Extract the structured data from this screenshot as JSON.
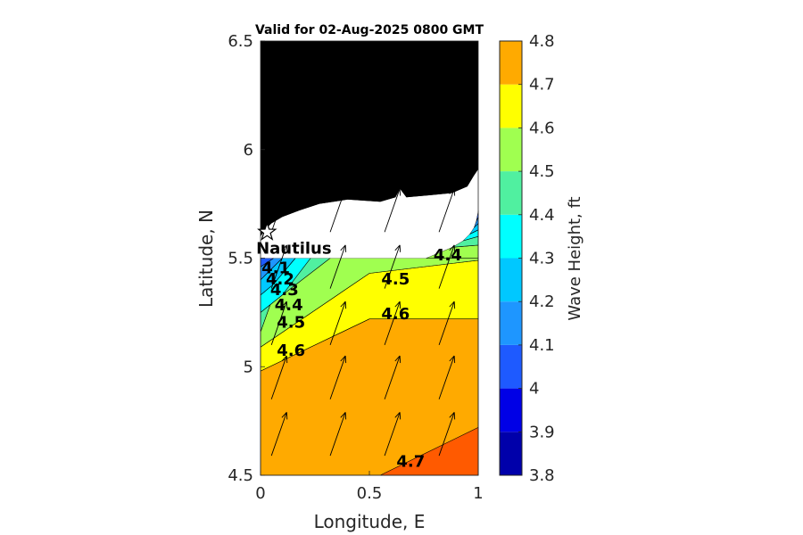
{
  "chart_data": {
    "type": "contour",
    "title": "Valid for 02-Aug-2025 0800 GMT",
    "xlabel": "Longitude, E",
    "ylabel": "Latitude, N",
    "xlim": [
      0,
      1
    ],
    "ylim": [
      4.5,
      6.5
    ],
    "xticks": [
      "0",
      "0.5",
      "1"
    ],
    "yticks": [
      "4.5",
      "5",
      "5.5",
      "6",
      "6.5"
    ],
    "colorbar": {
      "label": "Wave Height, ft",
      "ticks": [
        "3.8",
        "3.9",
        "4",
        "4.1",
        "4.2",
        "4.3",
        "4.4",
        "4.5",
        "4.6",
        "4.7",
        "4.8"
      ],
      "levels": [
        3.8,
        3.9,
        4.0,
        4.1,
        4.2,
        4.3,
        4.4,
        4.5,
        4.6,
        4.7,
        4.8
      ],
      "colors": [
        "#0000AA",
        "#0000E6",
        "#1E5AFF",
        "#1E96FF",
        "#00C8FF",
        "#00FFFF",
        "#50F0A0",
        "#A0FF50",
        "#FFFF00",
        "#FFAA00",
        "#FF5A00"
      ]
    },
    "site": {
      "name": "Nautilus",
      "lon": 0.03,
      "lat": 5.62
    },
    "contour_labels": [
      {
        "text": "4.1",
        "lon": 0.07,
        "lat": 5.45
      },
      {
        "text": "4.2",
        "lon": 0.09,
        "lat": 5.4
      },
      {
        "text": "4.3",
        "lon": 0.11,
        "lat": 5.35
      },
      {
        "text": "4.4",
        "lon": 0.13,
        "lat": 5.28
      },
      {
        "text": "4.5",
        "lon": 0.14,
        "lat": 5.2
      },
      {
        "text": "4.6",
        "lon": 0.14,
        "lat": 5.07
      },
      {
        "text": "4.5",
        "lon": 0.62,
        "lat": 5.4
      },
      {
        "text": "4.6",
        "lon": 0.62,
        "lat": 5.24
      },
      {
        "text": "4.4",
        "lon": 0.86,
        "lat": 5.51
      },
      {
        "text": "4.7",
        "lon": 0.69,
        "lat": 4.56
      }
    ],
    "regions": [
      {
        "level": 4.6,
        "color": "#FFAA00",
        "points": [
          [
            0,
            4.5
          ],
          [
            1,
            4.5
          ],
          [
            1,
            5.22
          ],
          [
            0.5,
            5.22
          ],
          [
            0,
            4.98
          ]
        ]
      },
      {
        "level": 4.7,
        "color": "#FF5A00",
        "points": [
          [
            0.55,
            4.5
          ],
          [
            1,
            4.5
          ],
          [
            1,
            4.72
          ]
        ]
      },
      {
        "level": 4.5,
        "color": "#FFFF00",
        "points": [
          [
            0,
            4.98
          ],
          [
            0.5,
            5.22
          ],
          [
            1,
            5.22
          ],
          [
            1,
            5.49
          ],
          [
            0.5,
            5.43
          ],
          [
            0,
            5.09
          ]
        ]
      },
      {
        "level": 4.4,
        "color": "#A0FF50",
        "points": [
          [
            0,
            5.09
          ],
          [
            0.5,
            5.43
          ],
          [
            1,
            5.49
          ],
          [
            1,
            5.5
          ],
          [
            0.12,
            5.5
          ],
          [
            0,
            5.16
          ]
        ]
      },
      {
        "level": 4.3,
        "color": "#50F0A0",
        "points": [
          [
            0,
            5.16
          ],
          [
            0.12,
            5.5
          ],
          [
            0.32,
            5.5
          ],
          [
            0.1,
            5.33
          ],
          [
            0,
            5.25
          ]
        ]
      },
      {
        "level": 4.2,
        "color": "#00FFFF",
        "points": [
          [
            0,
            5.25
          ],
          [
            0.1,
            5.33
          ],
          [
            0.23,
            5.5
          ],
          [
            0.16,
            5.5
          ],
          [
            0.06,
            5.38
          ],
          [
            0,
            5.33
          ]
        ]
      },
      {
        "level": 4.1,
        "color": "#00C8FF",
        "points": [
          [
            0,
            5.33
          ],
          [
            0.06,
            5.38
          ],
          [
            0.16,
            5.5
          ],
          [
            0.1,
            5.5
          ],
          [
            0.03,
            5.43
          ],
          [
            0,
            5.4
          ]
        ]
      },
      {
        "level": 4.0,
        "color": "#1E96FF",
        "points": [
          [
            0,
            5.4
          ],
          [
            0.03,
            5.43
          ],
          [
            0.1,
            5.5
          ],
          [
            0.06,
            5.5
          ],
          [
            0,
            5.46
          ]
        ]
      },
      {
        "level": 3.9,
        "color": "#1E5AFF",
        "points": [
          [
            0,
            5.46
          ],
          [
            0.06,
            5.5
          ],
          [
            0,
            5.5
          ]
        ]
      },
      {
        "level": 4.4,
        "color": "#A0FF50",
        "points": [
          [
            0.76,
            5.5
          ],
          [
            1,
            5.5
          ],
          [
            1,
            5.56
          ],
          [
            0.88,
            5.55
          ]
        ]
      },
      {
        "level": 4.3,
        "color": "#50F0A0",
        "points": [
          [
            0.88,
            5.55
          ],
          [
            1,
            5.56
          ],
          [
            1,
            5.6
          ],
          [
            0.93,
            5.58
          ]
        ]
      },
      {
        "level": 4.2,
        "color": "#00FFFF",
        "points": [
          [
            0.93,
            5.58
          ],
          [
            1,
            5.6
          ],
          [
            1,
            5.63
          ],
          [
            0.96,
            5.61
          ]
        ]
      },
      {
        "level": 4.1,
        "color": "#00C8FF",
        "points": [
          [
            0.96,
            5.61
          ],
          [
            1,
            5.63
          ],
          [
            1,
            5.66
          ],
          [
            0.98,
            5.64
          ]
        ]
      },
      {
        "level": 4.0,
        "color": "#1E96FF",
        "points": [
          [
            0.98,
            5.64
          ],
          [
            1,
            5.66
          ],
          [
            1,
            5.69
          ]
        ]
      },
      {
        "level": 3.9,
        "color": "#1E5AFF",
        "points": [
          [
            0.99,
            5.67
          ],
          [
            1,
            5.69
          ],
          [
            1,
            5.72
          ]
        ]
      }
    ],
    "land": [
      [
        0,
        5.6
      ],
      [
        0.02,
        5.63
      ],
      [
        0.05,
        5.66
      ],
      [
        0.1,
        5.69
      ],
      [
        0.18,
        5.72
      ],
      [
        0.27,
        5.75
      ],
      [
        0.4,
        5.77
      ],
      [
        0.55,
        5.76
      ],
      [
        0.62,
        5.78
      ],
      [
        0.64,
        5.82
      ],
      [
        0.67,
        5.78
      ],
      [
        0.78,
        5.79
      ],
      [
        0.88,
        5.8
      ],
      [
        0.95,
        5.83
      ],
      [
        0.98,
        5.88
      ],
      [
        1,
        5.91
      ],
      [
        1,
        6.5
      ],
      [
        0,
        6.5
      ]
    ],
    "wind_arrows": {
      "x": [
        0.05,
        0.32,
        0.57,
        0.82
      ],
      "y": [
        4.59,
        4.85,
        5.1,
        5.36,
        5.62
      ],
      "dx": 0.07,
      "dy": 0.2
    }
  }
}
